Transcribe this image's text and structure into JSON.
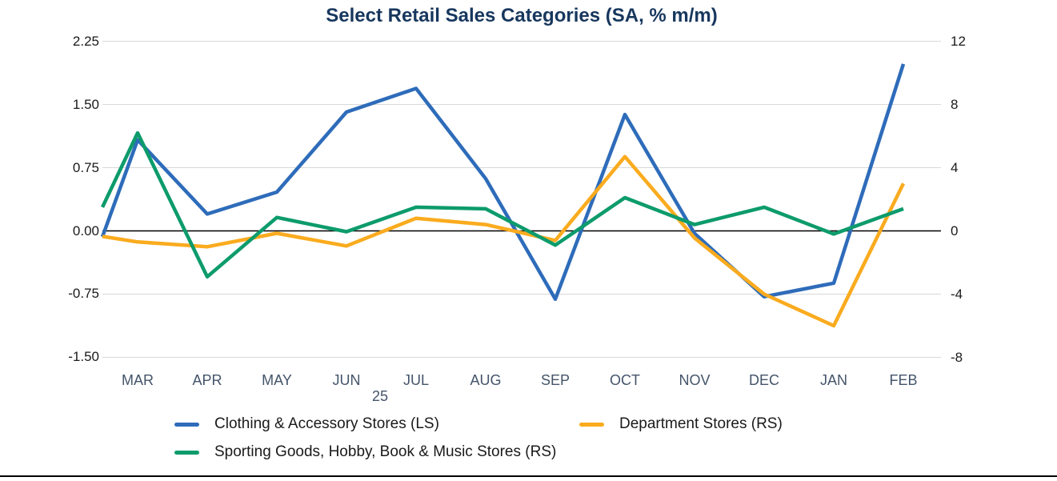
{
  "title": "Select Retail Sales Categories (SA, % m/m)",
  "chart_data": {
    "type": "line",
    "title": "Select Retail Sales Categories (SA, % m/m)",
    "categories": [
      "MAR",
      "APR",
      "MAY",
      "JUN",
      "JUL",
      "AUG",
      "SEP",
      "OCT",
      "NOV",
      "DEC",
      "JAN",
      "FEB"
    ],
    "year_label": "25",
    "grid": true,
    "legend_position": "bottom",
    "left_axis": {
      "tick_labels": [
        "2.25",
        "1.50",
        "0.75",
        "0.00",
        "-0.75",
        "-1.50"
      ],
      "tick_values": [
        2.25,
        1.5,
        0.75,
        0,
        -0.75,
        -1.5
      ],
      "min": -1.5,
      "max": 2.25
    },
    "right_axis": {
      "tick_labels": [
        "12",
        "8",
        "4",
        "0",
        "-4",
        "-8"
      ],
      "tick_values": [
        12,
        8,
        4,
        0,
        -4,
        -8
      ],
      "min": -8,
      "max": 12
    },
    "series": [
      {
        "name": "Clothing & Accessory Stores (LS)",
        "axis": "left",
        "color": "#2e6cba",
        "values": [
          1.08,
          0.2,
          0.46,
          1.41,
          1.69,
          0.62,
          -0.81,
          1.38,
          -0.03,
          -0.78,
          -0.62,
          1.98
        ],
        "left_edge_entry": -0.07
      },
      {
        "name": "Department Stores (RS)",
        "axis": "right",
        "color": "#faab1e",
        "values": [
          -0.7,
          -1.0,
          -0.15,
          -0.95,
          0.8,
          0.4,
          -0.6,
          4.7,
          -0.45,
          -4.0,
          -6.0,
          3.0
        ],
        "left_edge_entry": -0.35
      },
      {
        "name": "Sporting Goods, Hobby, Book & Music Stores (RS)",
        "axis": "right",
        "color": "#0d9b6c",
        "values": [
          6.2,
          -2.9,
          0.85,
          -0.05,
          1.5,
          1.4,
          -0.9,
          2.1,
          0.4,
          1.5,
          -0.2,
          1.4
        ],
        "left_edge_entry": 1.5
      }
    ]
  },
  "colors": {
    "grid": "#d9d9d9",
    "zero_line": "#000000",
    "title": "#17375e",
    "month_labels": "#44546a",
    "axis_numbers": "#1a1a1a"
  }
}
